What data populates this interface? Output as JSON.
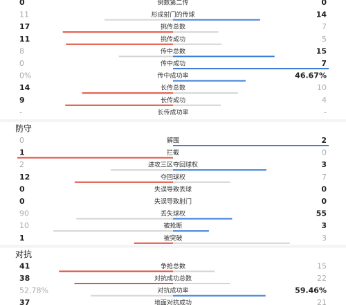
{
  "sections": [
    {
      "rows": [
        {
          "label": "倒数第二传",
          "left": "0",
          "right": "0",
          "better": "both"
        },
        {
          "label": "形成射门的传球",
          "left": "11",
          "right": "14",
          "better": "right"
        },
        {
          "label": "挑传总数",
          "left": "17",
          "right": "7",
          "better": "left"
        },
        {
          "label": "挑传成功",
          "left": "11",
          "right": "5",
          "better": "left"
        },
        {
          "label": "传中总数",
          "left": "8",
          "right": "15",
          "better": "right"
        },
        {
          "label": "传中成功",
          "left": "0",
          "right": "7",
          "better": "right"
        },
        {
          "label": "传中成功率",
          "left": "0%",
          "right": "46.67%",
          "better": "right"
        },
        {
          "label": "长传总数",
          "left": "14",
          "right": "10",
          "better": "left"
        },
        {
          "label": "长传成功",
          "left": "9",
          "right": "4",
          "better": "left"
        },
        {
          "label": "长传成功率",
          "left": "-",
          "right": "-",
          "better": "none"
        }
      ]
    },
    {
      "title": "防守",
      "rows": [
        {
          "label": "解围",
          "left": "0",
          "right": "2",
          "better": "right"
        },
        {
          "label": "拦截",
          "left": "1",
          "right": "0",
          "better": "left"
        },
        {
          "label": "进攻三区夺回球权",
          "left": "2",
          "right": "3",
          "better": "right"
        },
        {
          "label": "夺回球权",
          "left": "12",
          "right": "7",
          "better": "left"
        },
        {
          "label": "失误导致丢球",
          "left": "0",
          "right": "0",
          "better": "both"
        },
        {
          "label": "失误导致射门",
          "left": "0",
          "right": "0",
          "better": "both"
        },
        {
          "label": "丢失球权",
          "left": "90",
          "right": "55",
          "better": "right"
        },
        {
          "label": "被抢断",
          "left": "10",
          "right": "3",
          "better": "right"
        },
        {
          "label": "被突破",
          "left": "1",
          "right": "3",
          "better": "left"
        }
      ]
    },
    {
      "title": "对抗",
      "rows": [
        {
          "label": "争抢总数",
          "left": "41",
          "right": "15",
          "better": "left"
        },
        {
          "label": "对抗成功总数",
          "left": "38",
          "right": "22",
          "better": "left"
        },
        {
          "label": "对抗成功率",
          "left": "52.78%",
          "right": "59.46%",
          "better": "right"
        },
        {
          "label": "地面对抗成功",
          "left": "37",
          "right": "21",
          "better": "left"
        }
      ]
    }
  ]
}
